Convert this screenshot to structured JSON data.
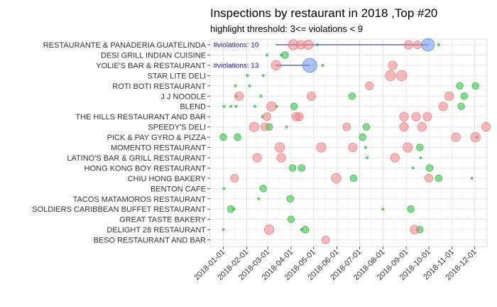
{
  "chart_data": {
    "type": "scatter",
    "title": "Inspections by restaurant in 2018 ,Top #20",
    "subtitle": "highlight threshold: 3<= violations < 9",
    "xlabel": "",
    "ylabel": "",
    "grid": true,
    "legend": "none",
    "xlim": [
      "2017-12-21",
      "2018-12-28"
    ],
    "x_ticks": [
      "2018-01-01",
      "2018-02-01",
      "2018-03-01",
      "2018-04-01",
      "2018-05-01",
      "2018-06-01",
      "2018-07-01",
      "2018-08-01",
      "2018-09-01",
      "2018-10-01",
      "2018-11-01",
      "2018-12-01"
    ],
    "categories": [
      "RESTAURANTE & PANADERIA GUATELINDA",
      "DESI GRILL INDIAN CUISINE",
      "YOLIE'S BAR & RESTAURANT",
      "STAR LITE DELI",
      "ROTI BOTI RESTAURANT",
      "J J NOODLE",
      "BLEND",
      "THE HILLS RESTAURANT AND BAR",
      "SPEEDY'S DELI",
      "PICK & PAY GYRO & PIZZA",
      "MOMENTO RESTAURANT",
      "LATINO'S BAR & GRILL RESTAURANT",
      "HONG KONG BOY RESTAURANT",
      "CHIU HONG BAKERY",
      "BENTON CAFE",
      "TACOS MATAMOROS RESTAURANT",
      "SOLDIERS CARIBBEAN BUFFET RESTAURANT",
      "GREAT TASTE BAKERY",
      "DELIGHT 28 RESTAURANT",
      "BESO RESTAURANT AND BAR"
    ],
    "colors": {
      "highlight": "#f08080",
      "low": "#2ecc40",
      "high": "#6495ed",
      "annotation": "#1a1aa8",
      "grid": "#e6e6e6"
    },
    "annotations": [
      {
        "text": "#violations: 10",
        "category": "RESTAURANTE & PANADERIA GUATELINDA",
        "from": "2018-01-01",
        "to": "2018-09-30"
      },
      {
        "text": "#violations: 13",
        "category": "YOLIE'S BAR & RESTAURANT",
        "from": "2018-01-01",
        "to": "2018-04-26"
      }
    ],
    "series": [
      {
        "group": "low",
        "points": [
          [
            "2018-05-06",
            "RESTAURANTE & PANADERIA GUATELINDA",
            1
          ],
          [
            "2018-10-14",
            "RESTAURANTE & PANADERIA GUATELINDA",
            1
          ],
          [
            "2018-03-24",
            "DESI GRILL INDIAN CUISINE",
            2
          ],
          [
            "2018-03-19",
            "DESI GRILL INDIAN CUISINE",
            1
          ],
          [
            "2018-02-28",
            "DESI GRILL INDIAN CUISINE",
            1
          ],
          [
            "2018-05-13",
            "YOLIE'S BAR & RESTAURANT",
            1
          ],
          [
            "2018-02-02",
            "STAR LITE DELI",
            1
          ],
          [
            "2018-02-23",
            "STAR LITE DELI",
            1
          ],
          [
            "2018-01-17",
            "ROTI BOTI RESTAURANT",
            1
          ],
          [
            "2018-02-05",
            "ROTI BOTI RESTAURANT",
            1
          ],
          [
            "2018-11-11",
            "ROTI BOTI RESTAURANT",
            2
          ],
          [
            "2018-12-02",
            "ROTI BOTI RESTAURANT",
            2
          ],
          [
            "2018-01-18",
            "J J NOODLE",
            1
          ],
          [
            "2018-02-20",
            "J J NOODLE",
            1
          ],
          [
            "2018-06-21",
            "J J NOODLE",
            2
          ],
          [
            "2018-11-17",
            "J J NOODLE",
            2
          ],
          [
            "2018-01-02",
            "BLEND",
            1
          ],
          [
            "2018-01-11",
            "BLEND",
            1
          ],
          [
            "2018-01-18",
            "BLEND",
            1
          ],
          [
            "2018-02-12",
            "BLEND",
            1
          ],
          [
            "2018-03-13",
            "BLEND",
            1
          ],
          [
            "2018-04-05",
            "BLEND",
            2
          ],
          [
            "2018-11-13",
            "BLEND",
            2
          ],
          [
            "2018-02-22",
            "THE HILLS RESTAURANT AND BAR",
            1
          ],
          [
            "2018-03-03",
            "SPEEDY'S DELI",
            2
          ],
          [
            "2018-03-26",
            "SPEEDY'S DELI",
            1
          ],
          [
            "2018-07-10",
            "SPEEDY'S DELI",
            2
          ],
          [
            "2018-01-01",
            "PICK & PAY GYRO & PIZZA",
            2
          ],
          [
            "2018-01-20",
            "PICK & PAY GYRO & PIZZA",
            2
          ],
          [
            "2018-07-05",
            "PICK & PAY GYRO & PIZZA",
            2
          ],
          [
            "2018-12-04",
            "PICK & PAY GYRO & PIZZA",
            1
          ],
          [
            "2018-07-09",
            "MOMENTO RESTAURANT",
            1
          ],
          [
            "2018-09-19",
            "MOMENTO RESTAURANT",
            2
          ],
          [
            "2018-07-11",
            "LATINO'S BAR & GRILL RESTAURANT",
            1
          ],
          [
            "2018-09-20",
            "LATINO'S BAR & GRILL RESTAURANT",
            1
          ],
          [
            "2018-04-03",
            "HONG KONG BOY RESTAURANT",
            2
          ],
          [
            "2018-04-15",
            "HONG KONG BOY RESTAURANT",
            2
          ],
          [
            "2018-09-10",
            "HONG KONG BOY RESTAURANT",
            1
          ],
          [
            "2018-10-02",
            "HONG KONG BOY RESTAURANT",
            2
          ],
          [
            "2018-06-23",
            "CHIU HONG BAKERY",
            2
          ],
          [
            "2018-10-14",
            "CHIU HONG BAKERY",
            2
          ],
          [
            "2018-11-27",
            "CHIU HONG BAKERY",
            1
          ],
          [
            "2018-01-02",
            "BENTON CAFE",
            1
          ],
          [
            "2018-02-23",
            "BENTON CAFE",
            2
          ],
          [
            "2018-02-17",
            "TACOS MATAMOROS RESTAURANT",
            1
          ],
          [
            "2018-03-31",
            "TACOS MATAMOROS RESTAURANT",
            2
          ],
          [
            "2018-01-11",
            "SOLDIERS CARIBBEAN BUFFET RESTAURANT",
            2
          ],
          [
            "2018-01-15",
            "SOLDIERS CARIBBEAN BUFFET RESTAURANT",
            1
          ],
          [
            "2018-08-01",
            "SOLDIERS CARIBBEAN BUFFET RESTAURANT",
            1
          ],
          [
            "2018-09-07",
            "SOLDIERS CARIBBEAN BUFFET RESTAURANT",
            2
          ],
          [
            "2018-04-01",
            "GREAT TASTE BAKERY",
            2
          ],
          [
            "2018-01-01",
            "DELIGHT 28 RESTAURANT",
            1
          ],
          [
            "2018-04-15",
            "DELIGHT 28 RESTAURANT",
            1
          ],
          [
            "2018-04-20",
            "DELIGHT 28 RESTAURANT",
            2
          ],
          [
            "2018-09-19",
            "DELIGHT 28 RESTAURANT",
            2
          ]
        ]
      },
      {
        "group": "highlight",
        "points": [
          [
            "2018-04-04",
            "RESTAURANTE & PANADERIA GUATELINDA",
            6
          ],
          [
            "2018-04-14",
            "RESTAURANTE & PANADERIA GUATELINDA",
            4
          ],
          [
            "2018-04-24",
            "RESTAURANTE & PANADERIA GUATELINDA",
            5
          ],
          [
            "2018-09-04",
            "RESTAURANTE & PANADERIA GUATELINDA",
            4
          ],
          [
            "2018-09-16",
            "RESTAURANTE & PANADERIA GUATELINDA",
            3
          ],
          [
            "2018-03-12",
            "YOLIE'S BAR & RESTAURANT",
            5
          ],
          [
            "2018-08-14",
            "YOLIE'S BAR & RESTAURANT",
            4
          ],
          [
            "2018-08-11",
            "STAR LITE DELI",
            6
          ],
          [
            "2018-08-26",
            "STAR LITE DELI",
            6
          ],
          [
            "2018-07-14",
            "ROTI BOTI RESTAURANT",
            3
          ],
          [
            "2018-01-22",
            "J J NOODLE",
            4
          ],
          [
            "2018-04-28",
            "J J NOODLE",
            4
          ],
          [
            "2018-10-28",
            "J J NOODLE",
            4
          ],
          [
            "2018-03-06",
            "BLEND",
            5
          ],
          [
            "2018-10-20",
            "BLEND",
            4
          ],
          [
            "2018-02-28",
            "THE HILLS RESTAURANT AND BAR",
            3
          ],
          [
            "2018-04-08",
            "THE HILLS RESTAURANT AND BAR",
            4
          ],
          [
            "2018-04-12",
            "THE HILLS RESTAURANT AND BAR",
            3
          ],
          [
            "2018-08-29",
            "THE HILLS RESTAURANT AND BAR",
            4
          ],
          [
            "2018-09-14",
            "THE HILLS RESTAURANT AND BAR",
            4
          ],
          [
            "2018-09-29",
            "THE HILLS RESTAURANT AND BAR",
            4
          ],
          [
            "2018-02-11",
            "SPEEDY'S DELI",
            5
          ],
          [
            "2018-02-25",
            "SPEEDY'S DELI",
            3
          ],
          [
            "2018-06-14",
            "SPEEDY'S DELI",
            3
          ],
          [
            "2018-08-29",
            "SPEEDY'S DELI",
            4
          ],
          [
            "2018-09-22",
            "SPEEDY'S DELI",
            4
          ],
          [
            "2018-12-16",
            "SPEEDY'S DELI",
            4
          ],
          [
            "2018-11-06",
            "PICK & PAY GYRO & PIZZA",
            4
          ],
          [
            "2018-12-02",
            "PICK & PAY GYRO & PIZZA",
            5
          ],
          [
            "2018-03-17",
            "MOMENTO RESTAURANT",
            5
          ],
          [
            "2018-05-11",
            "MOMENTO RESTAURANT",
            5
          ],
          [
            "2018-06-22",
            "MOMENTO RESTAURANT",
            4
          ],
          [
            "2018-09-03",
            "MOMENTO RESTAURANT",
            5
          ],
          [
            "2018-02-15",
            "LATINO'S BAR & GRILL RESTAURANT",
            4
          ],
          [
            "2018-03-19",
            "LATINO'S BAR & GRILL RESTAURANT",
            4
          ],
          [
            "2018-08-17",
            "LATINO'S BAR & GRILL RESTAURANT",
            4
          ],
          [
            "2018-01-16",
            "CHIU HONG BAKERY",
            3
          ],
          [
            "2018-05-31",
            "CHIU HONG BAKERY",
            5
          ],
          [
            "2018-10-01",
            "CHIU HONG BAKERY",
            3
          ],
          [
            "2018-03-03",
            "DELIGHT 28 RESTAURANT",
            5
          ],
          [
            "2018-09-12",
            "DELIGHT 28 RESTAURANT",
            4
          ],
          [
            "2018-05-17",
            "BESO RESTAURANT AND BAR",
            3
          ]
        ]
      },
      {
        "group": "high",
        "points": [
          [
            "2018-09-30",
            "RESTAURANTE & PANADERIA GUATELINDA",
            10
          ],
          [
            "2018-04-26",
            "YOLIE'S BAR & RESTAURANT",
            13
          ]
        ]
      }
    ]
  }
}
